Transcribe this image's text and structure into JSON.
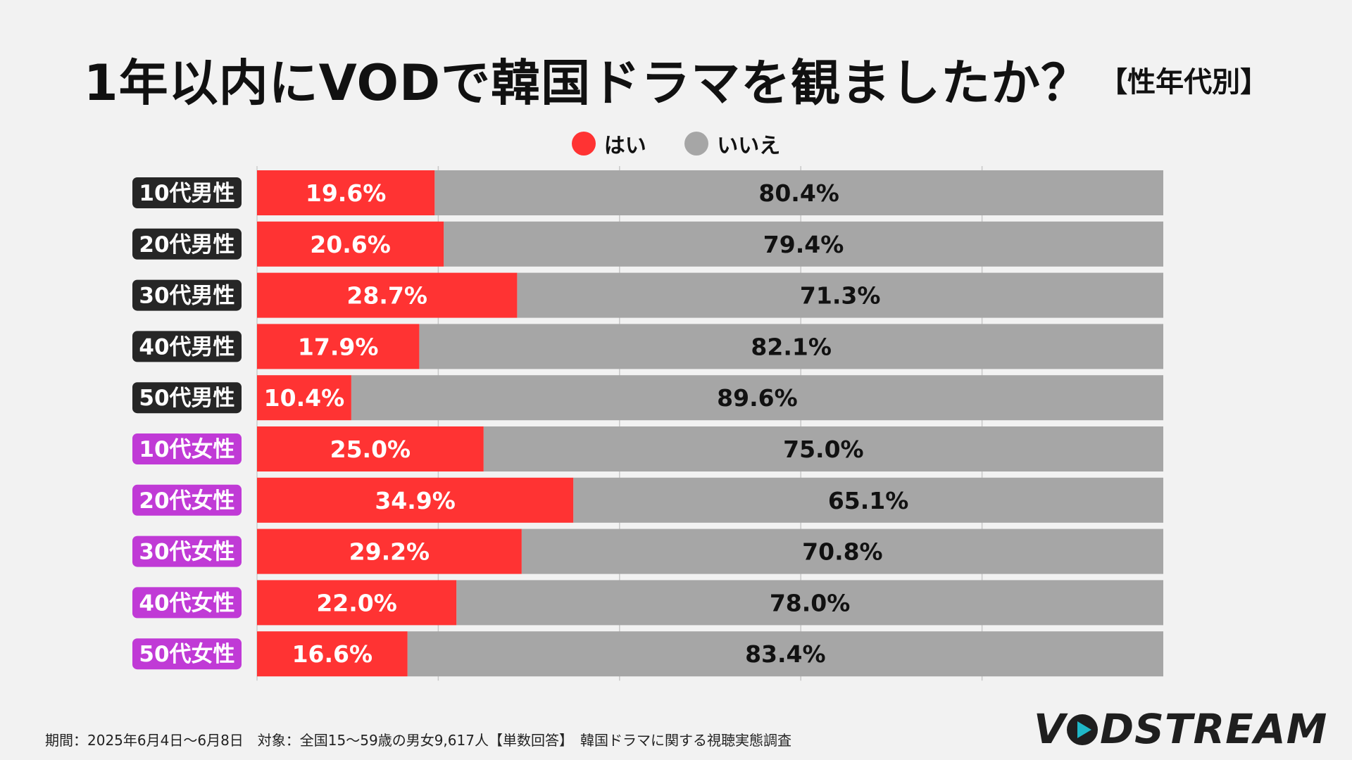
{
  "title": {
    "main": "1年以内にVODで韓国ドラマを観ましたか？",
    "sub": "【性年代別】"
  },
  "legend": {
    "yes": "はい",
    "no": "いいえ"
  },
  "colors": {
    "yes": "#ff3333",
    "no": "#a6a6a6",
    "male_label": "#262626",
    "female_label": "#c03ad6",
    "background": "#f2f2f2"
  },
  "chart_data": {
    "type": "bar",
    "orientation": "horizontal",
    "stacked": true,
    "xlim": [
      0,
      100
    ],
    "categories": [
      "10代男性",
      "20代男性",
      "30代男性",
      "40代男性",
      "50代男性",
      "10代女性",
      "20代女性",
      "30代女性",
      "40代女性",
      "50代女性"
    ],
    "category_group": [
      "male",
      "male",
      "male",
      "male",
      "male",
      "female",
      "female",
      "female",
      "female",
      "female"
    ],
    "series": [
      {
        "name": "はい",
        "values": [
          19.6,
          20.6,
          28.7,
          17.9,
          10.4,
          25.0,
          34.9,
          29.2,
          22.0,
          16.6
        ],
        "labels": [
          "19.6%",
          "20.6%",
          "28.7%",
          "17.9%",
          "10.4%",
          "25.0%",
          "34.9%",
          "29.2%",
          "22.0%",
          "16.6%"
        ]
      },
      {
        "name": "いいえ",
        "values": [
          80.4,
          79.4,
          71.3,
          82.1,
          89.6,
          75.0,
          65.1,
          70.8,
          78.0,
          83.4
        ],
        "labels": [
          "80.4%",
          "79.4%",
          "71.3%",
          "82.1%",
          "89.6%",
          "75.0%",
          "65.1%",
          "70.8%",
          "78.0%",
          "83.4%"
        ]
      }
    ],
    "gridlines": [
      20,
      40,
      60,
      80
    ]
  },
  "footer": {
    "note": "期間：2025年6月4日～6月8日　対象：全国15～59歳の男女9,617人【単数回答】　韓国ドラマに関する視聴実態調査"
  },
  "logo": {
    "text_v": "V",
    "text_rest": "DSTREAM",
    "full": "VODSTREAM"
  }
}
